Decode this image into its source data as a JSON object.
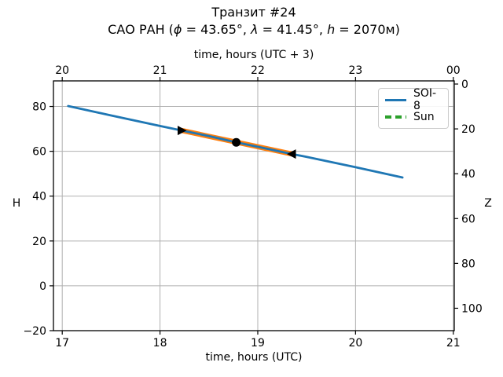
{
  "title": "Транзит #24",
  "subtitle_parts": {
    "prefix": "САО РАН (",
    "phi": "ϕ",
    "eq1": " = 43.65°, ",
    "lambda": "λ",
    "eq2": " = 41.45°, ",
    "h": "h",
    "eq3": " = 2070м)"
  },
  "chart_data": {
    "type": "line",
    "title": "Транзит #24",
    "subtitle": "САО РАН (ϕ = 43.65°, λ = 41.45°, h = 2070м)",
    "xlabel_bottom": "time, hours (UTC)",
    "xlabel_top": "time, hours (UTC + 3)",
    "ylabel_left": "H",
    "ylabel_right": "Z",
    "xlim": [
      16.91,
      21.01
    ],
    "ylim": [
      -20,
      91.4
    ],
    "grid": true,
    "x_ticks_bottom": {
      "values": [
        17,
        18,
        19,
        20,
        21
      ],
      "labels": [
        "17",
        "18",
        "19",
        "20",
        "21"
      ]
    },
    "x_ticks_top": {
      "values": [
        17,
        18,
        19,
        20,
        21
      ],
      "labels": [
        "20",
        "21",
        "22",
        "23",
        "00"
      ]
    },
    "y_ticks_left": {
      "values": [
        80,
        60,
        40,
        20,
        0,
        -20
      ],
      "labels": [
        "80",
        "60",
        "40",
        "20",
        "0",
        "−20"
      ]
    },
    "y_ticks_right": {
      "values": [
        90,
        70,
        50,
        30,
        10,
        -10
      ],
      "labels": [
        "0",
        "20",
        "40",
        "60",
        "80",
        "100"
      ]
    },
    "grid_color": "#b0b0b0",
    "series": [
      {
        "name": "SOI-8",
        "color": "#1f77b4",
        "width": 2.8,
        "zorder": 2,
        "x": [
          17.06,
          17.5,
          18.0,
          18.22,
          18.5,
          18.78,
          19.0,
          19.35,
          19.5,
          20.0,
          20.48
        ],
        "y": [
          80.2,
          76.0,
          71.3,
          69.3,
          66.8,
          64.0,
          62.0,
          58.8,
          57.5,
          52.9,
          48.3
        ]
      },
      {
        "name": "transit-segment",
        "color": "#ff7f0e",
        "width": 6.5,
        "zorder": 1,
        "x": [
          18.22,
          19.35
        ],
        "y": [
          69.3,
          58.8
        ]
      }
    ],
    "markers": [
      {
        "name": "transit-start",
        "shape": "triangle-right",
        "x": 18.22,
        "y": 69.3,
        "color": "#000000",
        "size": 12
      },
      {
        "name": "culmination",
        "shape": "circle",
        "x": 18.78,
        "y": 64.0,
        "color": "#000000",
        "size": 11
      },
      {
        "name": "transit-end",
        "shape": "triangle-left",
        "x": 19.35,
        "y": 58.8,
        "color": "#000000",
        "size": 12
      }
    ],
    "legend": {
      "position": "upper right",
      "entries": [
        {
          "label": "SOI-8",
          "color": "#1f77b4",
          "style": "solid"
        },
        {
          "label": "Sun",
          "color": "#2ca02c",
          "style": "dashed"
        }
      ]
    }
  }
}
